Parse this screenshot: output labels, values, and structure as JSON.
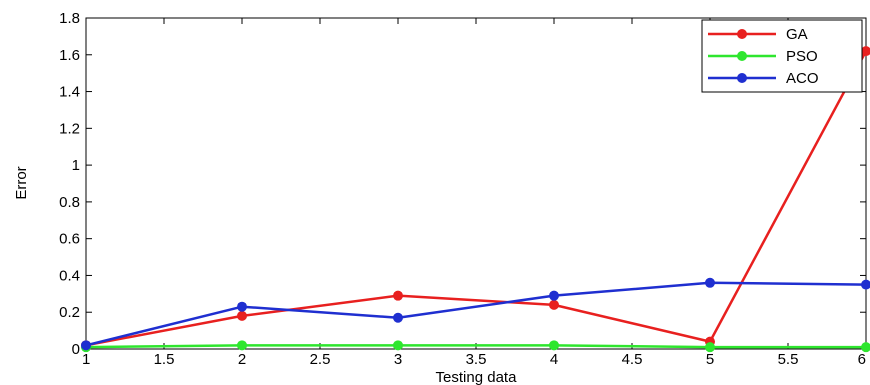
{
  "chart_data": {
    "type": "line",
    "title": "",
    "xlabel": "Testing data",
    "ylabel": "Error",
    "xlim": [
      1,
      6
    ],
    "ylim": [
      0,
      1.8
    ],
    "x_ticks": [
      "1",
      "1.5",
      "2",
      "2.5",
      "3",
      "3.5",
      "4",
      "4.5",
      "5",
      "5.5",
      "6"
    ],
    "y_ticks": [
      "0",
      "0.2",
      "0.4",
      "0.6",
      "0.8",
      "1",
      "1.2",
      "1.4",
      "1.6",
      "1.8"
    ],
    "grid": false,
    "legend_position": "top-right",
    "x": [
      1,
      2,
      3,
      4,
      5,
      6
    ],
    "series": [
      {
        "name": "GA",
        "color": "#e8201f",
        "values": [
          0.02,
          0.18,
          0.29,
          0.24,
          0.04,
          1.62
        ]
      },
      {
        "name": "PSO",
        "color": "#2ee62e",
        "values": [
          0.01,
          0.02,
          0.02,
          0.02,
          0.01,
          0.01
        ]
      },
      {
        "name": "ACO",
        "color": "#1f2fd0",
        "values": [
          0.02,
          0.23,
          0.17,
          0.29,
          0.36,
          0.35
        ]
      }
    ]
  }
}
